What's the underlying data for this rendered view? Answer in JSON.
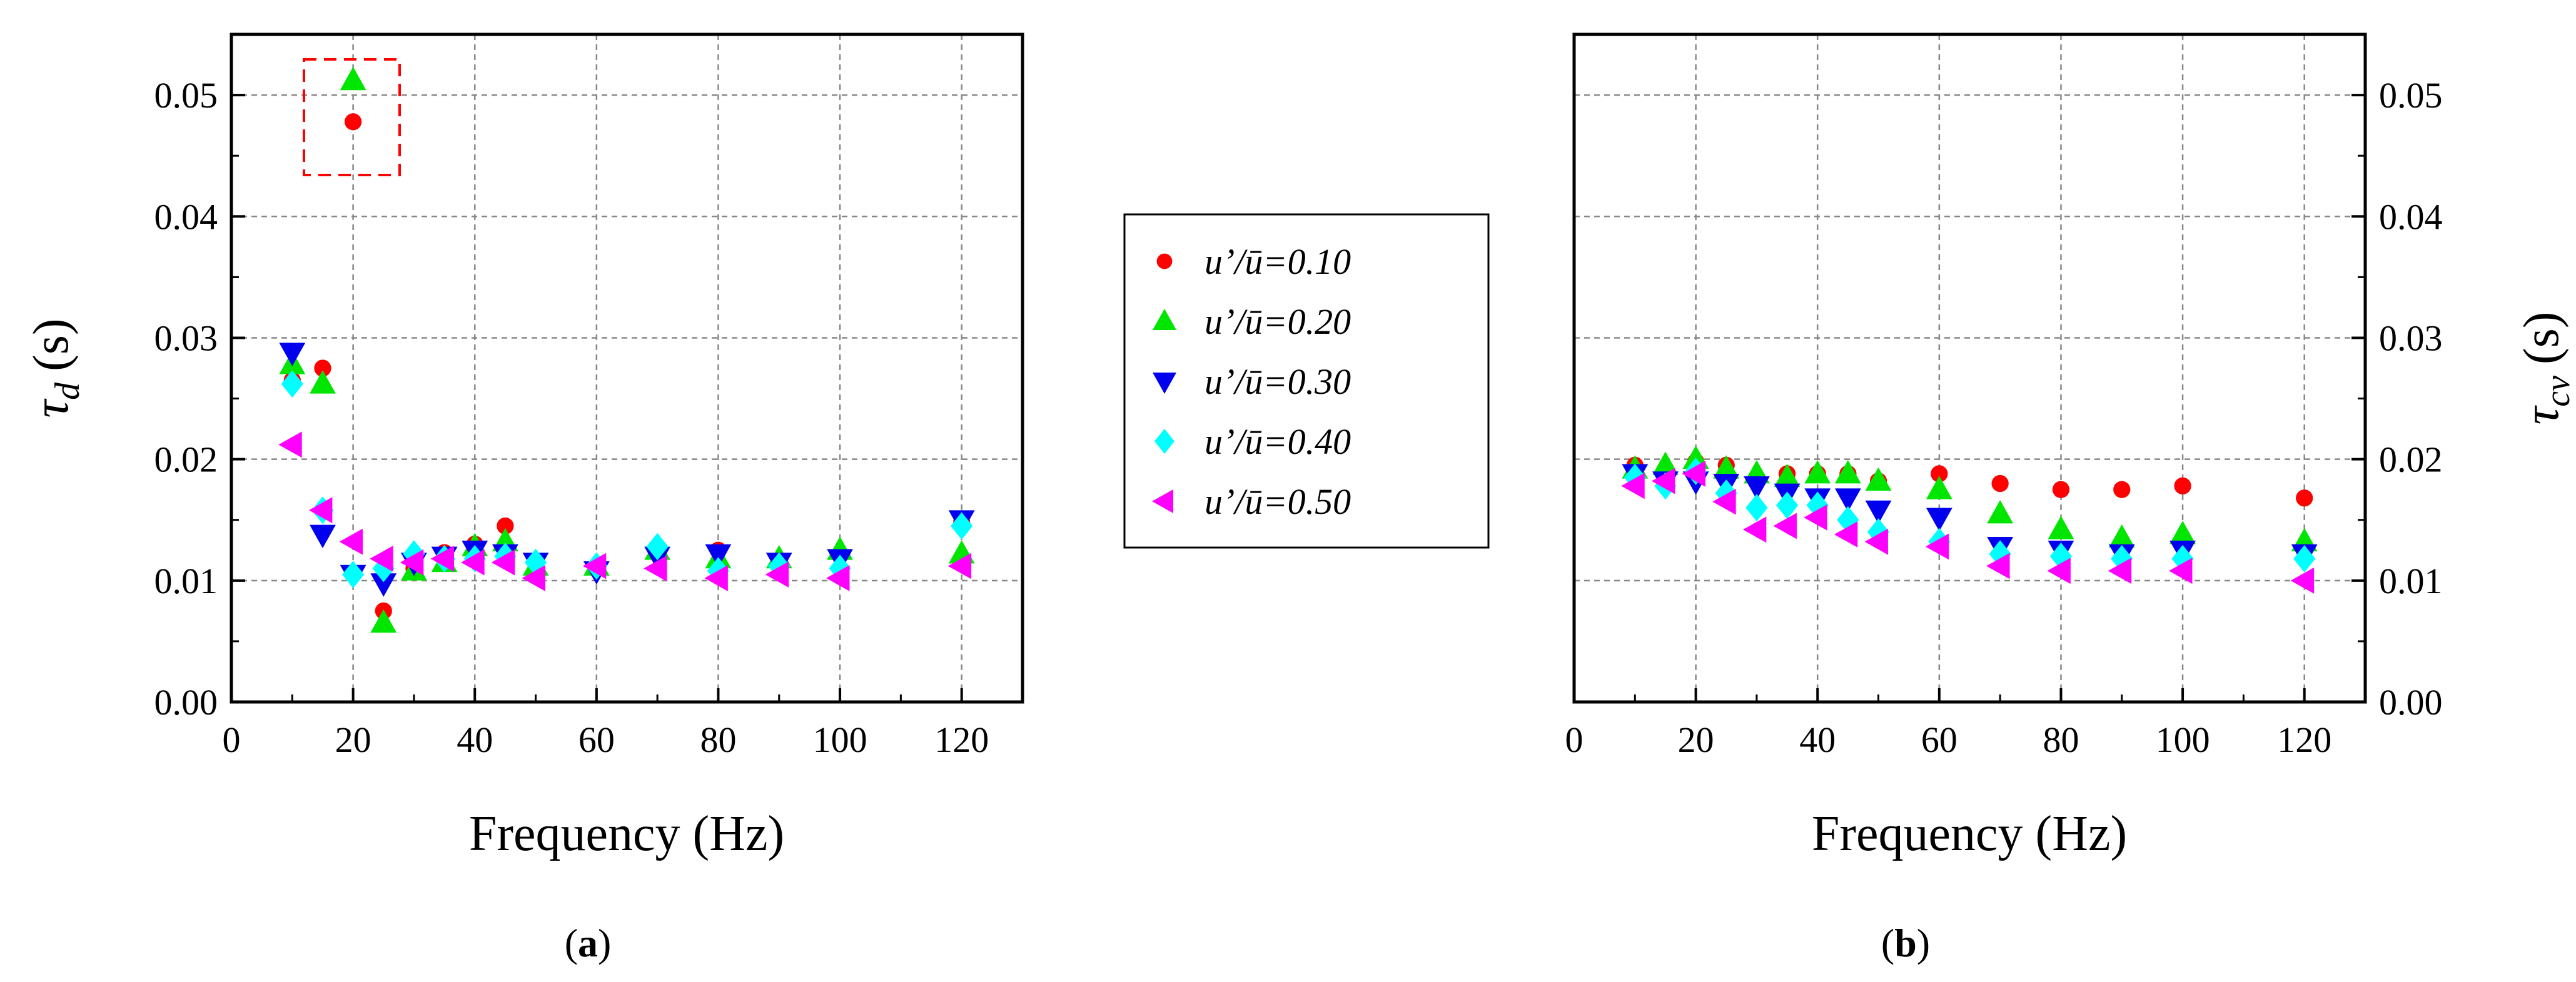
{
  "figure": {
    "panels": [
      "a",
      "b"
    ]
  },
  "legend": {
    "entries": [
      {
        "label": "u’/ū=0.10",
        "color": "#ff0000",
        "marker": "circle"
      },
      {
        "label": "u’/ū=0.20",
        "color": "#00e600",
        "marker": "triangle-up"
      },
      {
        "label": "u’/ū=0.30",
        "color": "#0000ee",
        "marker": "triangle-down"
      },
      {
        "label": "u’/ū=0.40",
        "color": "#00ffff",
        "marker": "diamond"
      },
      {
        "label": "u’/ū=0.50",
        "color": "#ff00ff",
        "marker": "triangle-left"
      }
    ]
  },
  "chart_data": [
    {
      "type": "scatter",
      "panel_label": "a",
      "title": "",
      "xlabel": "Frequency (Hz)",
      "ylabel_main": "τ",
      "ylabel_sub": "d",
      "ylabel_unit": "(s)",
      "xlim": [
        0,
        130
      ],
      "ylim": [
        0,
        0.055
      ],
      "xticks": [
        0,
        20,
        40,
        60,
        80,
        100,
        120
      ],
      "yticks": [
        0,
        0.01,
        0.02,
        0.03,
        0.04,
        0.05
      ],
      "xtick_labels": [
        "0",
        "20",
        "40",
        "60",
        "80",
        "100",
        "120"
      ],
      "ytick_labels": [
        "0.00",
        "0.01",
        "0.02",
        "0.03",
        "0.04",
        "0.05"
      ],
      "y_axis_side": "left",
      "grid": true,
      "annotation": "dashed red box around outliers at 20 Hz",
      "series": [
        {
          "name": "u’/ū=0.10",
          "x": [
            10,
            15,
            20,
            25,
            30,
            35,
            40,
            45,
            50,
            60,
            70,
            80,
            90,
            100,
            120
          ],
          "y": [
            0.0265,
            0.0275,
            0.0478,
            0.0075,
            0.011,
            0.0123,
            0.013,
            0.0145,
            0.0115,
            0.0112,
            0.0122,
            0.0125,
            0.0115,
            0.0122,
            0.0148
          ]
        },
        {
          "name": "u’/ū=0.20",
          "x": [
            10,
            15,
            20,
            25,
            30,
            35,
            40,
            45,
            50,
            60,
            70,
            80,
            90,
            100,
            120
          ],
          "y": [
            0.0278,
            0.0262,
            0.0512,
            0.0065,
            0.0108,
            0.0115,
            0.0128,
            0.0132,
            0.0112,
            0.0112,
            0.0125,
            0.0118,
            0.0118,
            0.0125,
            0.0122
          ]
        },
        {
          "name": "u’/ū=0.30",
          "x": [
            10,
            15,
            20,
            25,
            30,
            35,
            40,
            45,
            50,
            60,
            70,
            80,
            90,
            100,
            120
          ],
          "y": [
            0.0288,
            0.0138,
            0.0105,
            0.0098,
            0.0115,
            0.012,
            0.0125,
            0.0122,
            0.0115,
            0.0108,
            0.012,
            0.0122,
            0.0115,
            0.0118,
            0.015
          ]
        },
        {
          "name": "u’/ū=0.40",
          "x": [
            10,
            15,
            20,
            25,
            30,
            35,
            40,
            45,
            50,
            60,
            70,
            80,
            90,
            100,
            120
          ],
          "y": [
            0.0262,
            0.0158,
            0.0105,
            0.011,
            0.0122,
            0.0118,
            0.0118,
            0.012,
            0.0115,
            0.0112,
            0.0128,
            0.0108,
            0.0112,
            0.011,
            0.0145
          ]
        },
        {
          "name": "u’/ū=0.50",
          "x": [
            10,
            15,
            20,
            25,
            30,
            35,
            40,
            45,
            50,
            60,
            70,
            80,
            90,
            100,
            120
          ],
          "y": [
            0.0212,
            0.0158,
            0.0132,
            0.0118,
            0.0115,
            0.0118,
            0.0115,
            0.0115,
            0.0102,
            0.0112,
            0.011,
            0.0102,
            0.0105,
            0.0102,
            0.0112
          ]
        }
      ]
    },
    {
      "type": "scatter",
      "panel_label": "b",
      "title": "",
      "xlabel": "Frequency (Hz)",
      "ylabel_main": "τ",
      "ylabel_sub": "cv",
      "ylabel_unit": "(s)",
      "xlim": [
        0,
        130
      ],
      "ylim": [
        0,
        0.055
      ],
      "xticks": [
        0,
        20,
        40,
        60,
        80,
        100,
        120
      ],
      "yticks": [
        0,
        0.01,
        0.02,
        0.03,
        0.04,
        0.05
      ],
      "xtick_labels": [
        "0",
        "20",
        "40",
        "60",
        "80",
        "100",
        "120"
      ],
      "ytick_labels": [
        "0.00",
        "0.01",
        "0.02",
        "0.03",
        "0.04",
        "0.05"
      ],
      "y_axis_side": "right",
      "grid": true,
      "series": [
        {
          "name": "u’/ū=0.10",
          "x": [
            10,
            15,
            20,
            25,
            30,
            35,
            40,
            45,
            50,
            60,
            70,
            80,
            90,
            100,
            120
          ],
          "y": [
            0.0195,
            0.0192,
            0.0198,
            0.0195,
            0.0185,
            0.0188,
            0.0188,
            0.0188,
            0.0182,
            0.0188,
            0.018,
            0.0175,
            0.0175,
            0.0178,
            0.0168
          ]
        },
        {
          "name": "u’/ū=0.20",
          "x": [
            10,
            15,
            20,
            25,
            30,
            35,
            40,
            45,
            50,
            60,
            70,
            80,
            90,
            100,
            120
          ],
          "y": [
            0.0192,
            0.0195,
            0.02,
            0.0192,
            0.0188,
            0.0185,
            0.0188,
            0.0188,
            0.0182,
            0.0175,
            0.0155,
            0.0142,
            0.0135,
            0.0138,
            0.0132
          ]
        },
        {
          "name": "u’/ū=0.30",
          "x": [
            10,
            15,
            20,
            25,
            30,
            35,
            40,
            45,
            50,
            60,
            70,
            80,
            90,
            100,
            120
          ],
          "y": [
            0.0188,
            0.0182,
            0.0182,
            0.018,
            0.0178,
            0.0172,
            0.0168,
            0.0168,
            0.0158,
            0.0152,
            0.0128,
            0.0125,
            0.0122,
            0.0125,
            0.0122
          ]
        },
        {
          "name": "u’/ū=0.40",
          "x": [
            10,
            15,
            20,
            25,
            30,
            35,
            40,
            45,
            50,
            60,
            70,
            80,
            90,
            100,
            120
          ],
          "y": [
            0.0185,
            0.0178,
            0.019,
            0.0172,
            0.016,
            0.0162,
            0.0162,
            0.015,
            0.014,
            0.0132,
            0.0122,
            0.012,
            0.0118,
            0.0118,
            0.0118
          ]
        },
        {
          "name": "u’/ū=0.50",
          "x": [
            10,
            15,
            20,
            25,
            30,
            35,
            40,
            45,
            50,
            60,
            70,
            80,
            90,
            100,
            120
          ],
          "y": [
            0.0178,
            0.0182,
            0.0188,
            0.0165,
            0.0142,
            0.0145,
            0.0152,
            0.0138,
            0.0132,
            0.0128,
            0.0112,
            0.0108,
            0.0108,
            0.0108,
            0.01
          ]
        }
      ]
    }
  ]
}
